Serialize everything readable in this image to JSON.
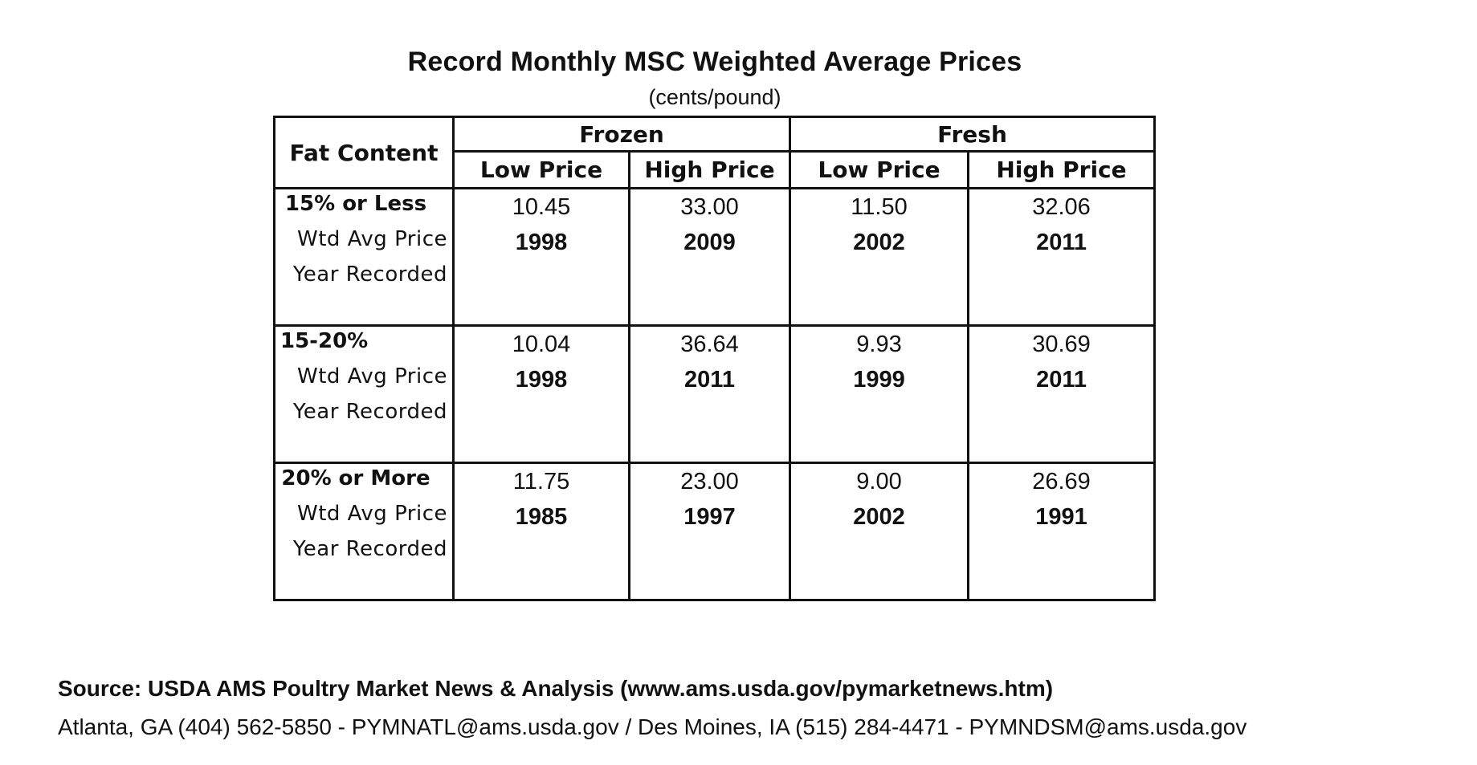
{
  "title": "Record Monthly MSC Weighted Average Prices",
  "subtitle": "(cents/pound)",
  "table": {
    "fat_header": "Fat Content",
    "groups": [
      "Frozen",
      "Fresh"
    ],
    "subheaders": [
      "Low Price",
      "High Price",
      "Low Price",
      "High Price"
    ],
    "price_label": "Wtd Avg Price",
    "year_label": "Year Recorded",
    "rows": [
      {
        "category": "15% or Less",
        "prices": [
          "10.45",
          "33.00",
          "11.50",
          "32.06"
        ],
        "years": [
          "1998",
          "2009",
          "2002",
          "2011"
        ]
      },
      {
        "category": "15-20%",
        "prices": [
          "10.04",
          "36.64",
          "9.93",
          "30.69"
        ],
        "years": [
          "1998",
          "2011",
          "1999",
          "2011"
        ]
      },
      {
        "category": "20% or More",
        "prices": [
          "11.75",
          "23.00",
          "9.00",
          "26.69"
        ],
        "years": [
          "1985",
          "1997",
          "2002",
          "1991"
        ]
      }
    ]
  },
  "source": "Source: USDA AMS Poultry Market News & Analysis (www.ams.usda.gov/pymarketnews.htm)",
  "contact": "Atlanta, GA  (404) 562-5850 - PYMNATL@ams.usda.gov / Des Moines, IA  (515) 284-4471 - PYMNDSM@ams.usda.gov"
}
